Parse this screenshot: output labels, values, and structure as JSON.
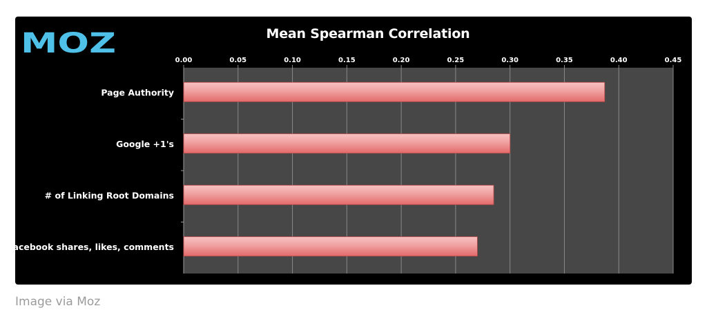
{
  "brand": {
    "logo_text": "MOZ",
    "logo_color": "#4fc1e9"
  },
  "caption": "Image via Moz",
  "colors": {
    "panel_bg": "#000000",
    "plot_bg": "#474747",
    "bar_fill": "#f0a0a0",
    "bar_edge": "#e36a6a",
    "gridline": "#8a8a8a",
    "text": "#ffffff"
  },
  "chart_data": {
    "type": "bar",
    "orientation": "horizontal",
    "title": "Mean Spearman Correlation",
    "categories": [
      "Page Authority",
      "Google +1's",
      "# of Linking Root Domains",
      "Facebook shares, likes, comments"
    ],
    "values": [
      0.387,
      0.3,
      0.285,
      0.27
    ],
    "xlim": [
      0,
      0.45
    ],
    "x_ticks": [
      "0.00",
      "0.05",
      "0.10",
      "0.15",
      "0.20",
      "0.25",
      "0.30",
      "0.35",
      "0.40",
      "0.45"
    ],
    "grid": true,
    "axis_position": "top",
    "legend": "none"
  }
}
